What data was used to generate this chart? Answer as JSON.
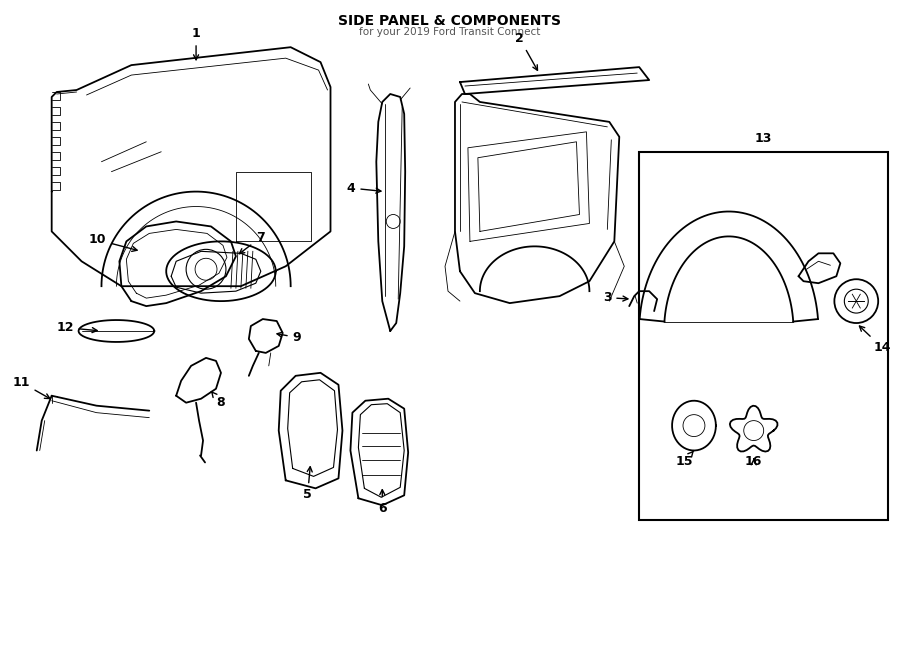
{
  "title": "SIDE PANEL & COMPONENTS",
  "subtitle": "for your 2019 Ford Transit Connect",
  "bg_color": "#ffffff",
  "line_color": "#000000",
  "figsize": [
    9.0,
    6.61
  ],
  "dpi": 100
}
